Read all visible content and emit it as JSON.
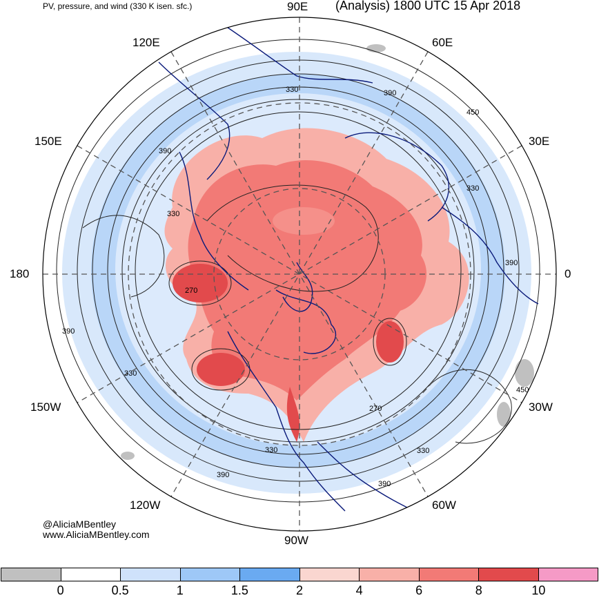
{
  "header": {
    "left_title": "PV, pressure, and wind (330 K isen. sfc.)",
    "right_title": "(Analysis) 1800 UTC 15 Apr 2018"
  },
  "longitude_labels": {
    "e90": "90E",
    "e60": "60E",
    "e30": "30E",
    "zero": "0",
    "w30": "30W",
    "w60": "60W",
    "w90": "90W",
    "w120": "120W",
    "w150": "150W",
    "date_line": "180",
    "e150": "150E",
    "e120": "120E"
  },
  "contour_labels": [
    "330",
    "390",
    "450",
    "390",
    "330",
    "390",
    "330",
    "270",
    "330",
    "450",
    "270",
    "330",
    "390",
    "390",
    "330",
    "390"
  ],
  "credits": {
    "handle": "@AliciaMBentley",
    "website": "www.AliciaMBentley.com"
  },
  "colorbar": {
    "colors": [
      "#c0c0c0",
      "#ffffff",
      "#cfe2fb",
      "#9ec8f7",
      "#6aaaf1",
      "#fad6d0",
      "#f8b0a8",
      "#f27a76",
      "#e24a4c",
      "#f59ac6"
    ],
    "ticks": [
      "0",
      "0.5",
      "1",
      "1.5",
      "2",
      "4",
      "6",
      "8",
      "10"
    ]
  }
}
